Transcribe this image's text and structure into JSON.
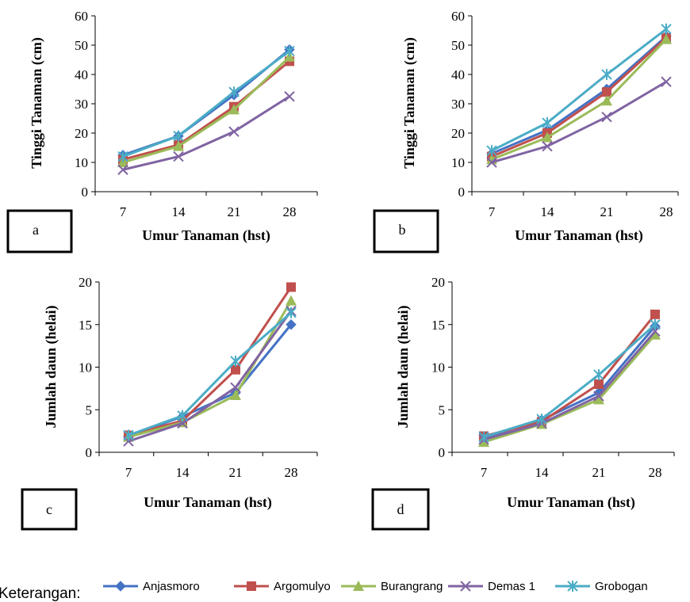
{
  "legend": {
    "title": "Keterangan:",
    "items": [
      {
        "label": "Anjasmoro",
        "color": "#4472C4",
        "marker": "diamond"
      },
      {
        "label": "Argomulyo",
        "color": "#C0504D",
        "marker": "square"
      },
      {
        "label": "Burangrang",
        "color": "#9BBB59",
        "marker": "triangle"
      },
      {
        "label": "Demas 1",
        "color": "#8064A2",
        "marker": "x"
      },
      {
        "label": "Grobogan",
        "color": "#4BACC6",
        "marker": "star"
      }
    ]
  },
  "chart_data": [
    {
      "type": "line",
      "panel_label": "a",
      "xlabel": "Umur Tanaman (hst)",
      "ylabel": "Tinggi Tanaman (cm)",
      "categories": [
        "7",
        "14",
        "21",
        "28"
      ],
      "ylim": [
        0,
        60
      ],
      "yticks": [
        0,
        10,
        20,
        30,
        40,
        50,
        60
      ],
      "grid": false,
      "series": [
        {
          "name": "Anjasmoro",
          "values": [
            12.5,
            19,
            33,
            48.5
          ]
        },
        {
          "name": "Argomulyo",
          "values": [
            11,
            16,
            29,
            44.5
          ]
        },
        {
          "name": "Burangrang",
          "values": [
            10,
            15.5,
            28,
            46
          ]
        },
        {
          "name": "Demas 1",
          "values": [
            7.5,
            12,
            20.5,
            32.5
          ]
        },
        {
          "name": "Grobogan",
          "values": [
            12,
            19,
            34,
            48
          ]
        }
      ]
    },
    {
      "type": "line",
      "panel_label": "b",
      "xlabel": "Umur Tanaman (hst)",
      "ylabel": "Tinggi Tanaman (cm)",
      "categories": [
        "7",
        "14",
        "21",
        "28"
      ],
      "ylim": [
        0,
        60
      ],
      "yticks": [
        0,
        10,
        20,
        30,
        40,
        50,
        60
      ],
      "grid": false,
      "series": [
        {
          "name": "Anjasmoro",
          "values": [
            13,
            21,
            35,
            53
          ]
        },
        {
          "name": "Argomulyo",
          "values": [
            12,
            20,
            34,
            52.5
          ]
        },
        {
          "name": "Burangrang",
          "values": [
            11,
            18.5,
            31,
            52
          ]
        },
        {
          "name": "Demas 1",
          "values": [
            10,
            15.5,
            25.5,
            37.5
          ]
        },
        {
          "name": "Grobogan",
          "values": [
            14,
            23.5,
            40,
            55.5
          ]
        }
      ]
    },
    {
      "type": "line",
      "panel_label": "c",
      "xlabel": "Umur Tanaman (hst)",
      "ylabel": "Jumlah daun (helai)",
      "categories": [
        "7",
        "14",
        "21",
        "28"
      ],
      "ylim": [
        0,
        20
      ],
      "yticks": [
        0,
        5,
        10,
        15,
        20
      ],
      "grid": false,
      "series": [
        {
          "name": "Anjasmoro",
          "values": [
            1.9,
            4.2,
            7.0,
            15.0
          ]
        },
        {
          "name": "Argomulyo",
          "values": [
            2.0,
            3.7,
            9.7,
            19.4
          ]
        },
        {
          "name": "Burangrang",
          "values": [
            1.8,
            3.5,
            6.7,
            17.8
          ]
        },
        {
          "name": "Demas 1",
          "values": [
            1.3,
            3.4,
            7.6,
            16.6
          ]
        },
        {
          "name": "Grobogan",
          "values": [
            2.0,
            4.3,
            10.7,
            16.4
          ]
        }
      ]
    },
    {
      "type": "line",
      "panel_label": "d",
      "xlabel": "Umur Tanaman (hst)",
      "ylabel": "Jumlah daun (helai)",
      "categories": [
        "7",
        "14",
        "21",
        "28"
      ],
      "ylim": [
        0,
        20
      ],
      "yticks": [
        0,
        5,
        10,
        15,
        20
      ],
      "grid": false,
      "series": [
        {
          "name": "Anjasmoro",
          "values": [
            1.7,
            3.8,
            7.0,
            14.8
          ]
        },
        {
          "name": "Argomulyo",
          "values": [
            1.9,
            3.6,
            8.0,
            16.2
          ]
        },
        {
          "name": "Burangrang",
          "values": [
            1.2,
            3.3,
            6.2,
            13.8
          ]
        },
        {
          "name": "Demas 1",
          "values": [
            1.5,
            3.4,
            6.6,
            14.2
          ]
        },
        {
          "name": "Grobogan",
          "values": [
            1.8,
            3.9,
            9.1,
            15.0
          ]
        }
      ]
    }
  ]
}
